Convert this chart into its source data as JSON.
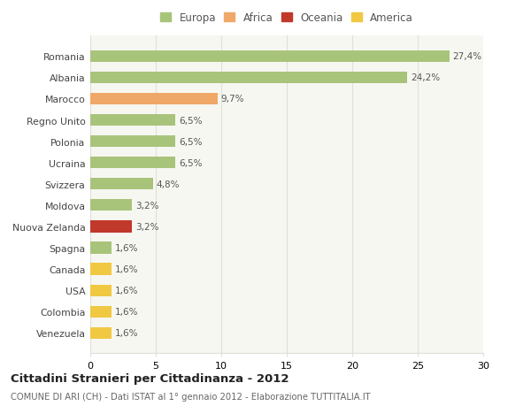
{
  "categories": [
    "Romania",
    "Albania",
    "Marocco",
    "Regno Unito",
    "Polonia",
    "Ucraina",
    "Svizzera",
    "Moldova",
    "Nuova Zelanda",
    "Spagna",
    "Canada",
    "USA",
    "Colombia",
    "Venezuela"
  ],
  "values": [
    27.4,
    24.2,
    9.7,
    6.5,
    6.5,
    6.5,
    4.8,
    3.2,
    3.2,
    1.6,
    1.6,
    1.6,
    1.6,
    1.6
  ],
  "labels": [
    "27,4%",
    "24,2%",
    "9,7%",
    "6,5%",
    "6,5%",
    "6,5%",
    "4,8%",
    "3,2%",
    "3,2%",
    "1,6%",
    "1,6%",
    "1,6%",
    "1,6%",
    "1,6%"
  ],
  "colors": [
    "#a8c47a",
    "#a8c47a",
    "#f0a868",
    "#a8c47a",
    "#a8c47a",
    "#a8c47a",
    "#a8c47a",
    "#a8c47a",
    "#c0392b",
    "#a8c47a",
    "#f0c842",
    "#f0c842",
    "#f0c842",
    "#f0c842"
  ],
  "legend_labels": [
    "Europa",
    "Africa",
    "Oceania",
    "America"
  ],
  "legend_colors": [
    "#a8c47a",
    "#f0a868",
    "#c0392b",
    "#f0c842"
  ],
  "title": "Cittadini Stranieri per Cittadinanza - 2012",
  "subtitle": "COMUNE DI ARI (CH) - Dati ISTAT al 1° gennaio 2012 - Elaborazione TUTTITALIA.IT",
  "xlim": [
    0,
    30
  ],
  "xticks": [
    0,
    5,
    10,
    15,
    20,
    25,
    30
  ],
  "bg_color": "#ffffff",
  "plot_bg_color": "#f7f7f2",
  "grid_color": "#e0e0d8"
}
